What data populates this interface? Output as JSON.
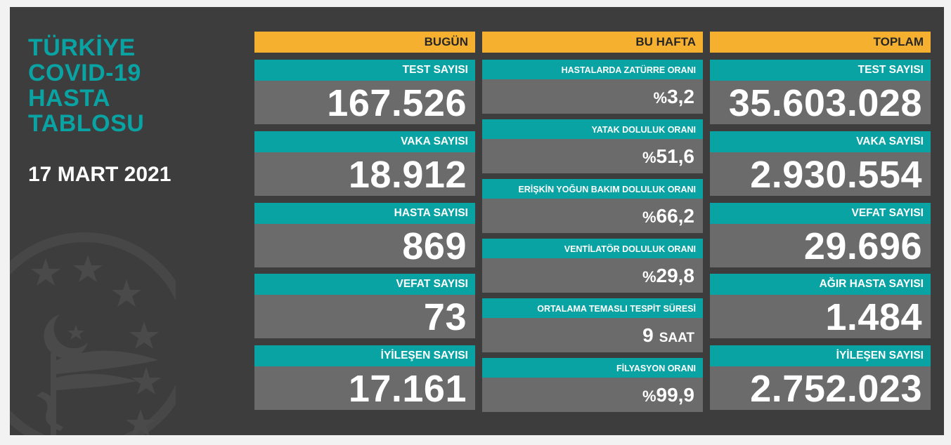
{
  "header": {
    "title_lines": [
      "TÜRKİYE",
      "COVID-19",
      "HASTA",
      "TABLOSU"
    ],
    "date": "17 MART 2021"
  },
  "today": {
    "header": "BUGÜN",
    "cards": [
      {
        "label": "TEST SAYISI",
        "value": "167.526"
      },
      {
        "label": "VAKA SAYISI",
        "value": "18.912"
      },
      {
        "label": "HASTA SAYISI",
        "value": "869"
      },
      {
        "label": "VEFAT SAYISI",
        "value": "73"
      },
      {
        "label": "İYİLEŞEN SAYISI",
        "value": "17.161"
      }
    ]
  },
  "week": {
    "header": "BU HAFTA",
    "cards": [
      {
        "label": "HASTALARDA ZATÜRRE ORANI",
        "prefix": "%",
        "value": "3,2",
        "unit": ""
      },
      {
        "label": "YATAK DOLULUK ORANI",
        "prefix": "%",
        "value": "51,6",
        "unit": ""
      },
      {
        "label": "ERİŞKİN YOĞUN BAKIM DOLULUK ORANI",
        "prefix": "%",
        "value": "66,2",
        "unit": ""
      },
      {
        "label": "VENTİLATÖR DOLULUK ORANI",
        "prefix": "%",
        "value": "29,8",
        "unit": ""
      },
      {
        "label": "ORTALAMA TEMASLI TESPİT SÜRESİ",
        "prefix": "",
        "value": "9",
        "unit": "SAAT"
      },
      {
        "label": "FİLYASYON ORANI",
        "prefix": "%",
        "value": "99,9",
        "unit": ""
      }
    ]
  },
  "total": {
    "header": "TOPLAM",
    "cards": [
      {
        "label": "TEST SAYISI",
        "value": "35.603.028"
      },
      {
        "label": "VAKA SAYISI",
        "value": "2.930.554"
      },
      {
        "label": "VEFAT SAYISI",
        "value": "29.696"
      },
      {
        "label": "AĞIR HASTA SAYISI",
        "value": "1.484"
      },
      {
        "label": "İYİLEŞEN SAYISI",
        "value": "2.752.023"
      }
    ]
  },
  "colors": {
    "teal": "#0aa3a4",
    "orange": "#f6b02f",
    "panel": "#3d3d3d",
    "value_bg": "#6b6b6b"
  },
  "icons": {
    "emblem": "ministry-of-health-emblem-watermark"
  }
}
